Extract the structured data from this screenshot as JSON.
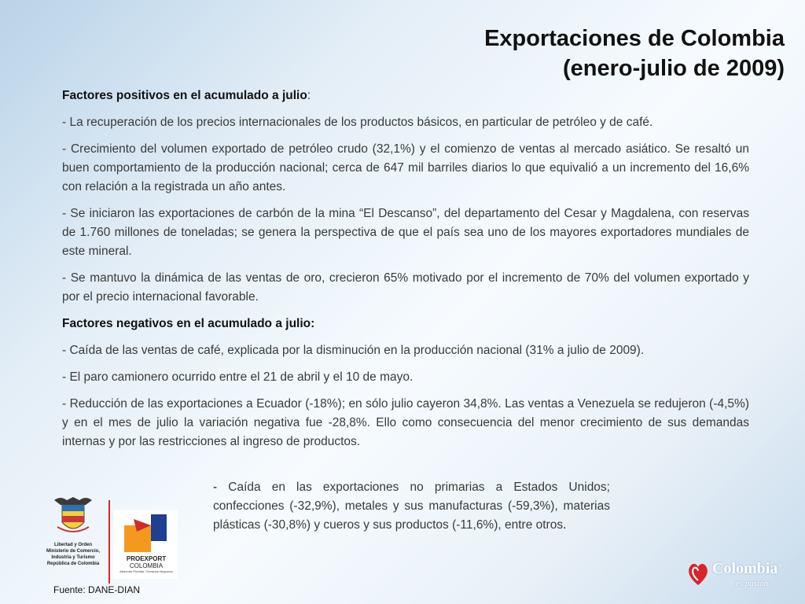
{
  "title": {
    "line1": "Exportaciones de Colombia",
    "line2": "(enero-julio de 2009)"
  },
  "positives": {
    "heading": "Factores positivos en el acumulado a julio",
    "heading_suffix": ":",
    "items": [
      "- La recuperación de los precios internacionales de los productos básicos, en particular de petróleo y de café.",
      "- Crecimiento del volumen exportado de petróleo crudo (32,1%) y el comienzo de ventas al mercado asiático. Se resaltó un buen comportamiento de la producción nacional; cerca de 647 mil barriles diarios lo que equivalió a un incremento del 16,6% con relación a la registrada un año antes.",
      "- Se iniciaron las exportaciones de carbón de la mina “El Descanso”, del departamento del Cesar y Magdalena, con reservas de 1.760 millones de toneladas; se genera la perspectiva de que el país sea uno de los mayores exportadores mundiales de este mineral.",
      "- Se mantuvo la dinámica de las ventas de oro, crecieron 65% motivado por el incremento de 70% del volumen exportado y por el precio internacional favorable."
    ]
  },
  "negatives": {
    "heading": "Factores negativos en el acumulado a julio:",
    "items": [
      "-  Caída de las ventas de café, explicada por la disminución en la producción nacional (31%  a julio de 2009).",
      "-   El paro camionero ocurrido entre el 21 de abril y el 10 de mayo.",
      "- Reducción de las exportaciones a Ecuador (-18%); en sólo julio cayeron 34,8%. Las ventas a Venezuela se redujeron (-4,5%) y en el mes de julio la variación negativa fue -28,8%. Ello como consecuencia del menor crecimiento de sus demandas internas y por las restricciones al ingreso de productos."
    ],
    "last_item_dash": "-",
    "last_item_text": " Caída en las exportaciones no primarias a Estados Unidos; confecciones (-32,9%), metales y sus manufacturas (-59,3%), materias plásticas (-30,8%) y cueros y sus productos (-11,6%), entre otros",
    "last_item_end": "."
  },
  "logos": {
    "ministry_lines": [
      "Libertad y Orden",
      "Ministerio de Comercio,",
      "Industria y Turismo",
      "República de Colombia"
    ],
    "proexport_name": "PROEXPORT",
    "proexport_country": "COLOMBIA",
    "proexport_slogan": "Abriendo Puertas, Cerrando Negocios",
    "brand_word": "Colombia",
    "brand_slogan": "es pasión",
    "brand_mark": "®"
  },
  "source": "Fuente: DANE-DIAN",
  "colors": {
    "accent_red": "#d12b2b",
    "proexport_orange": "#f39a1e",
    "proexport_blue": "#1f3f8f"
  }
}
